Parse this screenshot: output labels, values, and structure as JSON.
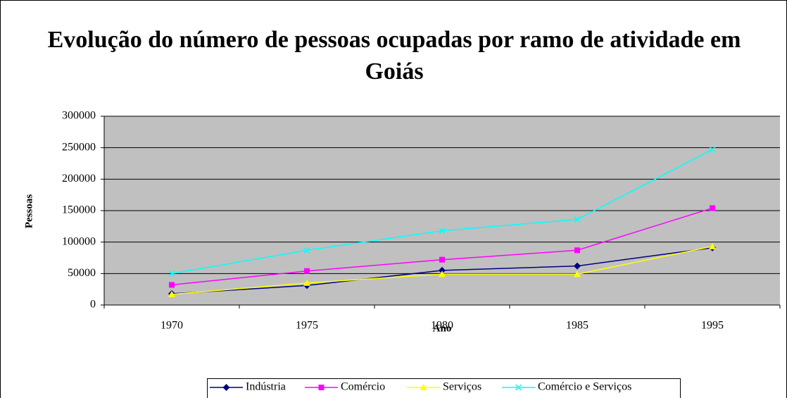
{
  "chart_data": {
    "type": "line",
    "title": "Evolução do número de pessoas ocupadas por ramo de atividade em Goiás",
    "xlabel": "Ano",
    "ylabel": "Pessoas",
    "categories": [
      "1970",
      "1975",
      "1980",
      "1985",
      "1995"
    ],
    "series": [
      {
        "name": "Indústria",
        "color": "#000080",
        "marker": "diamond",
        "values": [
          18000,
          31000,
          55000,
          62000,
          91000
        ]
      },
      {
        "name": "Comércio",
        "color": "#ff00ff",
        "marker": "square",
        "values": [
          32000,
          54000,
          72000,
          87000,
          154000
        ]
      },
      {
        "name": "Serviços",
        "color": "#ffff00",
        "marker": "triangle",
        "values": [
          17000,
          35000,
          49000,
          49000,
          93000
        ]
      },
      {
        "name": "Comércio e Serviços",
        "color": "#00ffff",
        "marker": "x",
        "values": [
          50000,
          87000,
          118000,
          136000,
          247000
        ]
      }
    ],
    "ylim": [
      0,
      300000
    ],
    "yticks": [
      0,
      50000,
      100000,
      150000,
      200000,
      250000,
      300000
    ],
    "grid": true,
    "legend": "bottom"
  }
}
